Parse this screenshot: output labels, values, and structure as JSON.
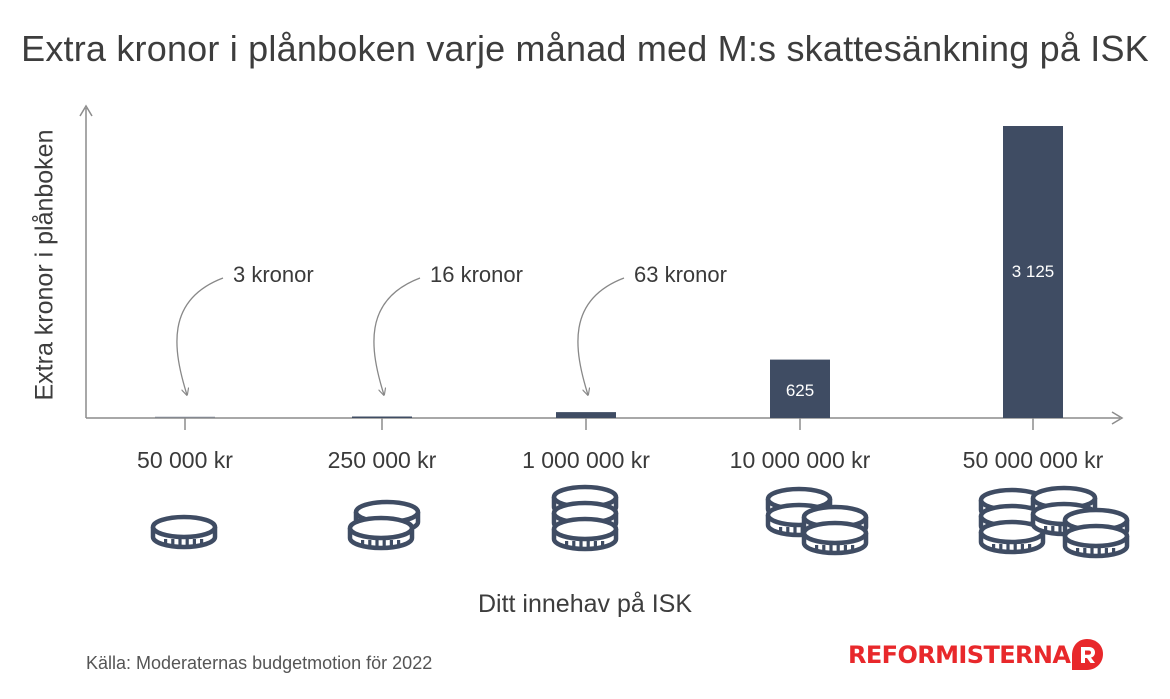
{
  "title": "Extra kronor i plånboken varje månad med M:s skattesänkning på ISK",
  "source": "Källa: Moderaternas budgetmotion för 2022",
  "logo": "REFORMISTERNA",
  "colors": {
    "bar": "#3f4c63",
    "axis": "#8c8c8c",
    "text": "#3d3d3d",
    "coin": "#3f4c63",
    "logo": "#e8282b"
  },
  "chart_data": {
    "type": "bar",
    "title": "Extra kronor i plånboken varje månad med M:s skattesänkning på ISK",
    "xlabel": "Ditt innehav på ISK",
    "ylabel": "Extra kronor i plånboken",
    "categories": [
      "50 000 kr",
      "250 000 kr",
      "1 000 000 kr",
      "10 000 000 kr",
      "50 000 000 kr"
    ],
    "values": [
      3,
      16,
      63,
      625,
      3125
    ],
    "data_labels": [
      "3 kronor",
      "16 kronor",
      "63 kronor",
      "625",
      "3 125"
    ],
    "coin_icons": [
      "coin-stack-1-icon",
      "coin-stack-2-icon",
      "coin-stack-3-icon",
      "coin-stack-4-icon",
      "coin-stack-6-icon"
    ],
    "ylim": [
      0,
      3125
    ],
    "grid": false,
    "legend": "none"
  }
}
